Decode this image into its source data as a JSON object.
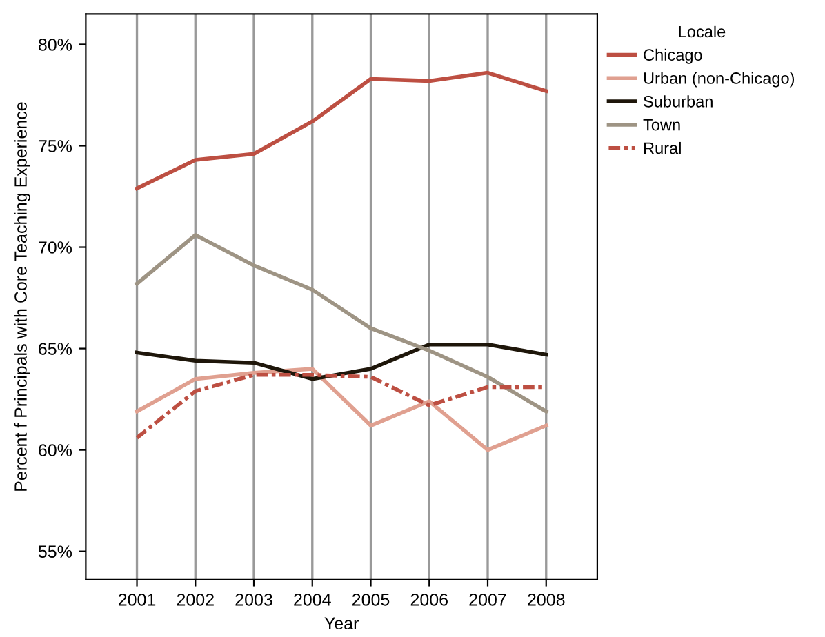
{
  "chart_data": {
    "type": "line",
    "xlabel": "Year",
    "ylabel": "Percent f Principals with Core Teaching Experience",
    "legend_title": "Locale",
    "x": [
      2001,
      2002,
      2003,
      2004,
      2005,
      2006,
      2007,
      2008
    ],
    "series": [
      {
        "name": "Chicago",
        "color": "#bd4f42",
        "values": [
          72.9,
          74.3,
          74.6,
          76.2,
          78.3,
          78.2,
          78.6,
          77.7
        ]
      },
      {
        "name": "Urban (non-Chicago)",
        "color": "#e0a090",
        "values": [
          61.9,
          63.5,
          63.8,
          64.0,
          61.2,
          62.4,
          60.0,
          61.2
        ]
      },
      {
        "name": "Suburban",
        "color": "#1e160a",
        "values": [
          64.8,
          64.4,
          64.3,
          63.5,
          64.0,
          65.2,
          65.2,
          64.7
        ]
      },
      {
        "name": "Town",
        "color": "#9e9484",
        "values": [
          68.2,
          70.6,
          69.1,
          67.9,
          66.0,
          64.9,
          63.6,
          61.9
        ]
      },
      {
        "name": "Rural",
        "color": "#bd4f42",
        "line_style": "dashed",
        "values": [
          60.6,
          62.9,
          63.7,
          63.7,
          63.6,
          62.2,
          63.1,
          63.1
        ]
      }
    ],
    "xlim": [
      2000.125,
      2008.875
    ],
    "xticks": [
      2001,
      2002,
      2003,
      2004,
      2005,
      2006,
      2007,
      2008
    ],
    "ylim": [
      53.6,
      81.5
    ],
    "yticks": [
      {
        "value": 55,
        "label": "55%"
      },
      {
        "value": 60,
        "label": "60%"
      },
      {
        "value": 65,
        "label": "65%"
      },
      {
        "value": 70,
        "label": "70%"
      },
      {
        "value": 75,
        "label": "75%"
      },
      {
        "value": 80,
        "label": "80%"
      }
    ],
    "grid": "x",
    "legend": "top right",
    "marker": "none",
    "line_style": "solid"
  }
}
